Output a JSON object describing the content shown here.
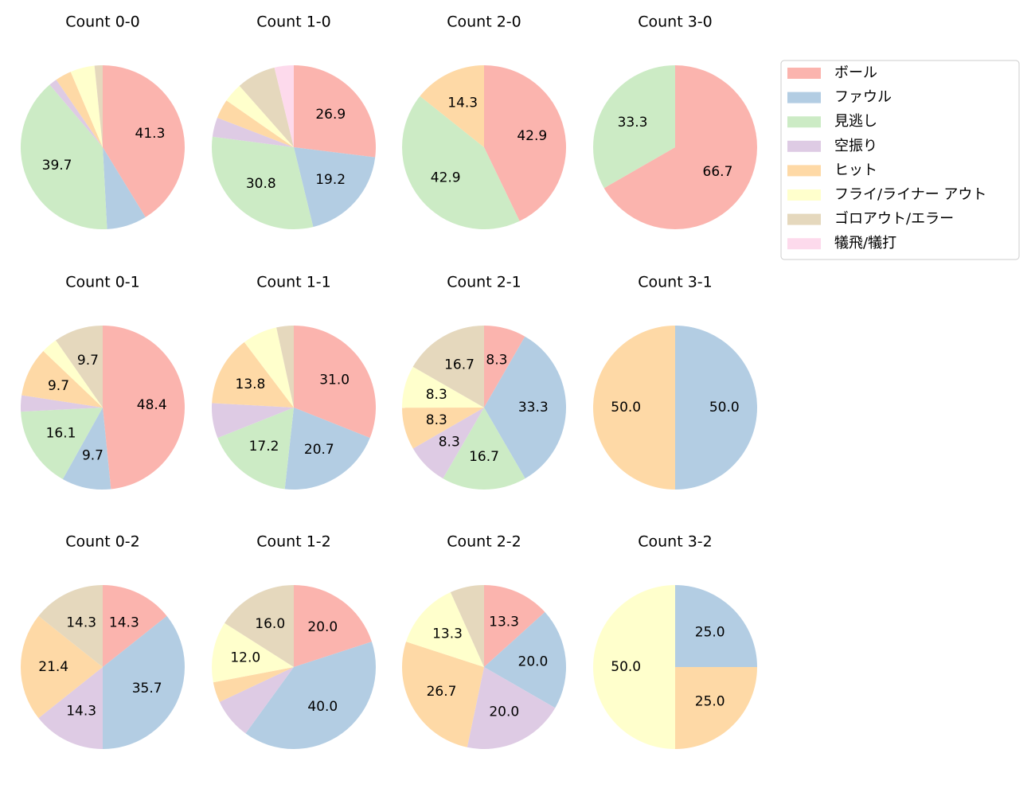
{
  "chart_data": [
    {
      "type": "pie",
      "title": "Count 0-0",
      "categories": [
        "ボール",
        "ファウル",
        "見逃し",
        "空振り",
        "ヒット",
        "フライ/ライナー アウト",
        "ゴロアウト/エラー",
        "犠飛/犠打"
      ],
      "colors": [
        "#fbb4ae",
        "#b3cde3",
        "#ccebc5",
        "#decbe4",
        "#fed9a6",
        "#ffffcc",
        "#e5d8bd",
        "#fddaec"
      ],
      "values": [
        41.3,
        7.9,
        39.7,
        1.6,
        3.2,
        4.8,
        1.6,
        0
      ],
      "value_labels": [
        "41.3",
        null,
        "39.7",
        null,
        null,
        null,
        null,
        null
      ]
    },
    {
      "type": "pie",
      "title": "Count 1-0",
      "categories": [
        "ボール",
        "ファウル",
        "見逃し",
        "空振り",
        "ヒット",
        "フライ/ライナー アウト",
        "ゴロアウト/エラー",
        "犠飛/犠打"
      ],
      "colors": [
        "#fbb4ae",
        "#b3cde3",
        "#ccebc5",
        "#decbe4",
        "#fed9a6",
        "#ffffcc",
        "#e5d8bd",
        "#fddaec"
      ],
      "values": [
        26.9,
        19.2,
        30.8,
        3.8,
        3.8,
        3.8,
        7.7,
        3.8
      ],
      "value_labels": [
        "26.9",
        "19.2",
        "30.8",
        null,
        null,
        null,
        null,
        null
      ]
    },
    {
      "type": "pie",
      "title": "Count 2-0",
      "categories": [
        "ボール",
        "ファウル",
        "見逃し",
        "空振り",
        "ヒット",
        "フライ/ライナー アウト",
        "ゴロアウト/エラー",
        "犠飛/犠打"
      ],
      "colors": [
        "#fbb4ae",
        "#b3cde3",
        "#ccebc5",
        "#decbe4",
        "#fed9a6",
        "#ffffcc",
        "#e5d8bd",
        "#fddaec"
      ],
      "values": [
        42.9,
        0,
        42.9,
        0,
        14.3,
        0,
        0,
        0
      ],
      "value_labels": [
        "42.9",
        null,
        "42.9",
        null,
        "14.3",
        null,
        null,
        null
      ]
    },
    {
      "type": "pie",
      "title": "Count 3-0",
      "categories": [
        "ボール",
        "ファウル",
        "見逃し",
        "空振り",
        "ヒット",
        "フライ/ライナー アウト",
        "ゴロアウト/エラー",
        "犠飛/犠打"
      ],
      "colors": [
        "#fbb4ae",
        "#b3cde3",
        "#ccebc5",
        "#decbe4",
        "#fed9a6",
        "#ffffcc",
        "#e5d8bd",
        "#fddaec"
      ],
      "values": [
        66.7,
        0,
        33.3,
        0,
        0,
        0,
        0,
        0
      ],
      "value_labels": [
        "66.7",
        null,
        "33.3",
        null,
        null,
        null,
        null,
        null
      ]
    },
    {
      "type": "pie",
      "title": "Count 0-1",
      "categories": [
        "ボール",
        "ファウル",
        "見逃し",
        "空振り",
        "ヒット",
        "フライ/ライナー アウト",
        "ゴロアウト/エラー",
        "犠飛/犠打"
      ],
      "colors": [
        "#fbb4ae",
        "#b3cde3",
        "#ccebc5",
        "#decbe4",
        "#fed9a6",
        "#ffffcc",
        "#e5d8bd",
        "#fddaec"
      ],
      "values": [
        48.4,
        9.7,
        16.1,
        3.2,
        9.7,
        3.2,
        9.7,
        0
      ],
      "value_labels": [
        "48.4",
        "9.7",
        "16.1",
        null,
        "9.7",
        null,
        "9.7",
        null
      ]
    },
    {
      "type": "pie",
      "title": "Count 1-1",
      "categories": [
        "ボール",
        "ファウル",
        "見逃し",
        "空振り",
        "ヒット",
        "フライ/ライナー アウト",
        "ゴロアウト/エラー",
        "犠飛/犠打"
      ],
      "colors": [
        "#fbb4ae",
        "#b3cde3",
        "#ccebc5",
        "#decbe4",
        "#fed9a6",
        "#ffffcc",
        "#e5d8bd",
        "#fddaec"
      ],
      "values": [
        31.0,
        20.7,
        17.2,
        6.9,
        13.8,
        6.9,
        3.4,
        0
      ],
      "value_labels": [
        "31.0",
        "20.7",
        "17.2",
        null,
        "13.8",
        null,
        null,
        null
      ]
    },
    {
      "type": "pie",
      "title": "Count 2-1",
      "categories": [
        "ボール",
        "ファウル",
        "見逃し",
        "空振り",
        "ヒット",
        "フライ/ライナー アウト",
        "ゴロアウト/エラー",
        "犠飛/犠打"
      ],
      "colors": [
        "#fbb4ae",
        "#b3cde3",
        "#ccebc5",
        "#decbe4",
        "#fed9a6",
        "#ffffcc",
        "#e5d8bd",
        "#fddaec"
      ],
      "values": [
        8.3,
        33.3,
        16.7,
        8.3,
        8.3,
        8.3,
        16.7,
        0
      ],
      "value_labels": [
        "8.3",
        "33.3",
        "16.7",
        "8.3",
        "8.3",
        "8.3",
        "16.7",
        null
      ]
    },
    {
      "type": "pie",
      "title": "Count 3-1",
      "categories": [
        "ボール",
        "ファウル",
        "見逃し",
        "空振り",
        "ヒット",
        "フライ/ライナー アウト",
        "ゴロアウト/エラー",
        "犠飛/犠打"
      ],
      "colors": [
        "#fbb4ae",
        "#b3cde3",
        "#ccebc5",
        "#decbe4",
        "#fed9a6",
        "#ffffcc",
        "#e5d8bd",
        "#fddaec"
      ],
      "values": [
        0,
        50,
        0,
        0,
        50,
        0,
        0,
        0
      ],
      "value_labels": [
        null,
        "50.0",
        null,
        null,
        "50.0",
        null,
        null,
        null
      ]
    },
    {
      "type": "pie",
      "title": "Count 0-2",
      "categories": [
        "ボール",
        "ファウル",
        "見逃し",
        "空振り",
        "ヒット",
        "フライ/ライナー アウト",
        "ゴロアウト/エラー",
        "犠飛/犠打"
      ],
      "colors": [
        "#fbb4ae",
        "#b3cde3",
        "#ccebc5",
        "#decbe4",
        "#fed9a6",
        "#ffffcc",
        "#e5d8bd",
        "#fddaec"
      ],
      "values": [
        14.3,
        35.7,
        0,
        14.3,
        21.4,
        0,
        14.3,
        0
      ],
      "value_labels": [
        "14.3",
        "35.7",
        null,
        "14.3",
        "21.4",
        null,
        "14.3",
        null
      ]
    },
    {
      "type": "pie",
      "title": "Count 1-2",
      "categories": [
        "ボール",
        "ファウル",
        "見逃し",
        "空振り",
        "ヒット",
        "フライ/ライナー アウト",
        "ゴロアウト/エラー",
        "犠飛/犠打"
      ],
      "colors": [
        "#fbb4ae",
        "#b3cde3",
        "#ccebc5",
        "#decbe4",
        "#fed9a6",
        "#ffffcc",
        "#e5d8bd",
        "#fddaec"
      ],
      "values": [
        20,
        40,
        0,
        8,
        4,
        12,
        16,
        0
      ],
      "value_labels": [
        "20.0",
        "40.0",
        null,
        null,
        null,
        "12.0",
        "16.0",
        null
      ]
    },
    {
      "type": "pie",
      "title": "Count 2-2",
      "categories": [
        "ボール",
        "ファウル",
        "見逃し",
        "空振り",
        "ヒット",
        "フライ/ライナー アウト",
        "ゴロアウト/エラー",
        "犠飛/犠打"
      ],
      "colors": [
        "#fbb4ae",
        "#b3cde3",
        "#ccebc5",
        "#decbe4",
        "#fed9a6",
        "#ffffcc",
        "#e5d8bd",
        "#fddaec"
      ],
      "values": [
        13.3,
        20,
        0,
        20,
        26.7,
        13.3,
        6.7,
        0
      ],
      "value_labels": [
        "13.3",
        "20.0",
        null,
        "20.0",
        "26.7",
        "13.3",
        null,
        null
      ]
    },
    {
      "type": "pie",
      "title": "Count 3-2",
      "categories": [
        "ボール",
        "ファウル",
        "見逃し",
        "空振り",
        "ヒット",
        "フライ/ライナー アウト",
        "ゴロアウト/エラー",
        "犠飛/犠打"
      ],
      "colors": [
        "#fbb4ae",
        "#b3cde3",
        "#ccebc5",
        "#decbe4",
        "#fed9a6",
        "#ffffcc",
        "#e5d8bd",
        "#fddaec"
      ],
      "values": [
        0,
        25,
        0,
        0,
        25,
        50,
        0,
        0
      ],
      "value_labels": [
        null,
        "25.0",
        null,
        null,
        "25.0",
        "50.0",
        null,
        null
      ]
    }
  ]
}
